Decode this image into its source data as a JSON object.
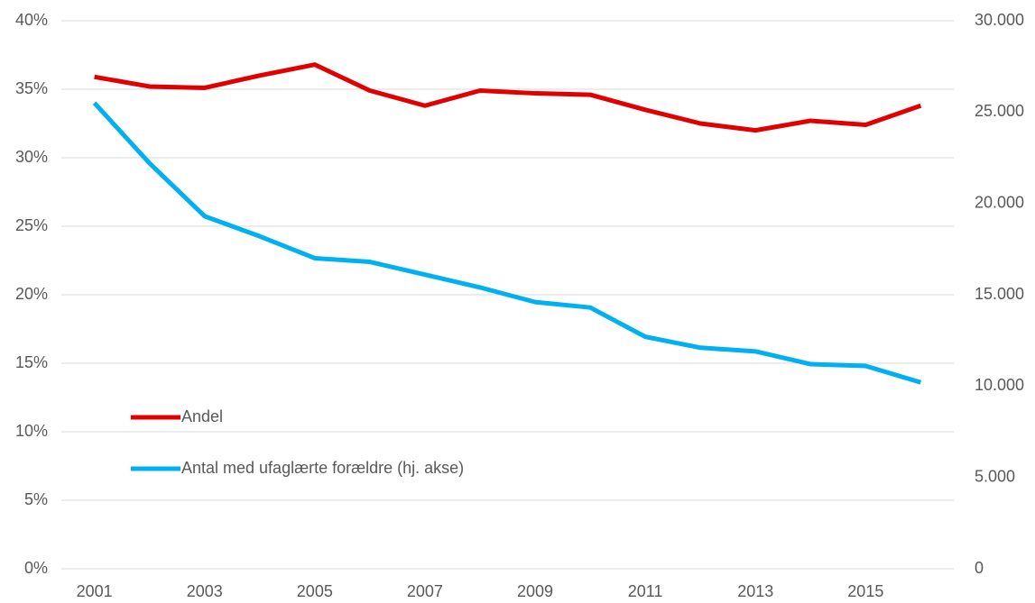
{
  "chart_data": {
    "type": "line",
    "x": [
      2001,
      2002,
      2003,
      2004,
      2005,
      2006,
      2007,
      2008,
      2009,
      2010,
      2011,
      2012,
      2013,
      2014,
      2015,
      2016
    ],
    "xlim": [
      2000.4,
      2016.6
    ],
    "xticks": [
      2001,
      2003,
      2005,
      2007,
      2009,
      2011,
      2013,
      2015
    ],
    "series": [
      {
        "name": "Andel",
        "color": "#e00000",
        "values": [
          35.9,
          35.2,
          35.1,
          36.0,
          36.8,
          34.9,
          33.8,
          34.9,
          34.7,
          34.6,
          33.5,
          32.5,
          32.0,
          32.7,
          32.4,
          33.8
        ]
      },
      {
        "name": "Antal med ufaglærte forældre (hj. akse)",
        "color": "#00b0f0",
        "axis": "y2",
        "values": [
          25500,
          22200,
          19300,
          18200,
          17000,
          16800,
          16100,
          15400,
          14600,
          14300,
          12700,
          12100,
          11900,
          11200,
          11100,
          10200
        ]
      }
    ],
    "ylim": [
      0,
      40
    ],
    "yticks": [
      {
        "value": 0,
        "label": "0%"
      },
      {
        "value": 5,
        "label": "5%"
      },
      {
        "value": 10,
        "label": "10%"
      },
      {
        "value": 15,
        "label": "15%"
      },
      {
        "value": 20,
        "label": "20%"
      },
      {
        "value": 25,
        "label": "25%"
      },
      {
        "value": 30,
        "label": "30%"
      },
      {
        "value": 35,
        "label": "35%"
      },
      {
        "value": 40,
        "label": "40%"
      }
    ],
    "y2lim": [
      0,
      30000
    ],
    "y2ticks": [
      0,
      {
        "value": 5000,
        "label": "5.000"
      },
      {
        "value": 10000,
        "label": "10.000"
      },
      {
        "value": 15000,
        "label": "15.000"
      },
      {
        "value": 20000,
        "label": "20.000"
      },
      {
        "value": 25000,
        "label": "25.000"
      },
      {
        "value": 30000,
        "label": "30.000"
      }
    ],
    "grid": true,
    "legend_position": "lower-left"
  }
}
